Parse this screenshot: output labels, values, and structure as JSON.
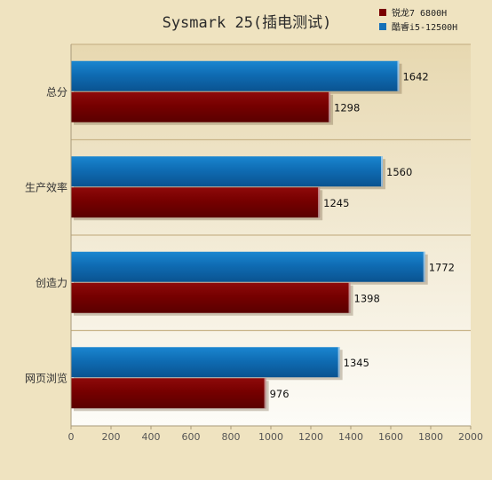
{
  "chart_data": {
    "type": "bar",
    "orientation": "horizontal",
    "title": "Sysmark 25(插电测试)",
    "categories": [
      "总分",
      "生产效率",
      "创造力",
      "网页浏览"
    ],
    "series": [
      {
        "name": "酷睿i5-12500H",
        "values": [
          1642,
          1560,
          1772,
          1345
        ],
        "color": "#1570b8"
      },
      {
        "name": "锐龙7 6800H",
        "values": [
          1298,
          1245,
          1398,
          976
        ],
        "color": "#7a0000"
      }
    ],
    "xlim": [
      0,
      2000
    ],
    "xticks": [
      0,
      200,
      400,
      600,
      800,
      1000,
      1200,
      1400,
      1600,
      1800,
      2000
    ],
    "legend_order": [
      "锐龙7 6800H",
      "酷睿i5-12500H"
    ],
    "legend_position": "top-right",
    "grid": false
  }
}
